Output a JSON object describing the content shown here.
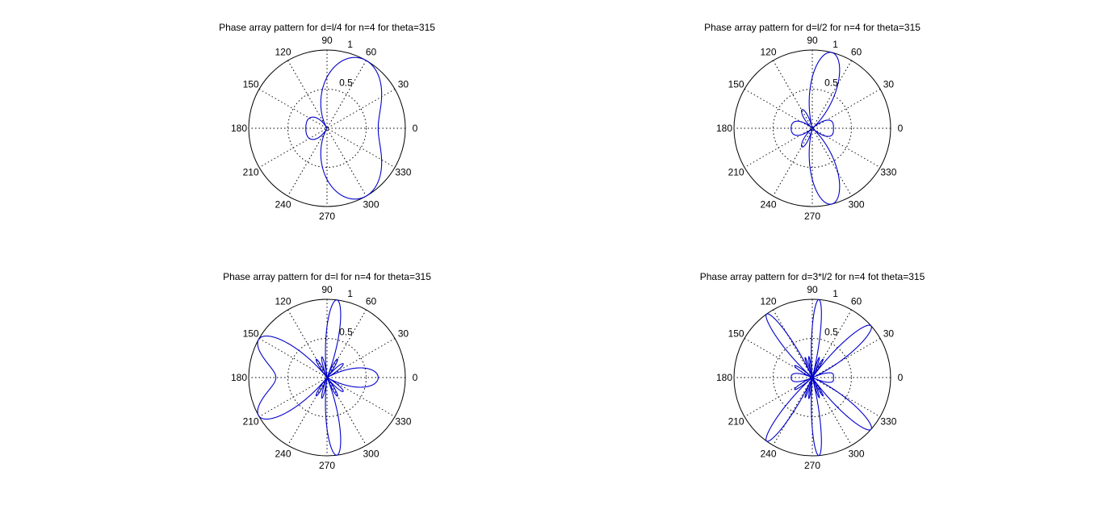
{
  "colors": {
    "background": "#ffffff",
    "trace": "#0000cc",
    "axis": "#000000",
    "grid": "#000000"
  },
  "chart_data": [
    {
      "type": "polar",
      "title": "Phase array pattern for d=l/4 for n=4 for theta=315",
      "n": 4,
      "d_over_lambda": 0.25,
      "theta_deg": 315,
      "r_ticks": [
        "0.5",
        "1"
      ],
      "angle_ticks": [
        "0",
        "30",
        "60",
        "90",
        "120",
        "150",
        "180",
        "210",
        "240",
        "270",
        "300",
        "330"
      ],
      "rlim": [
        0,
        1
      ],
      "grid": true
    },
    {
      "type": "polar",
      "title": "Phase array pattern for d=l/2 for n=4 for theta=315",
      "n": 4,
      "d_over_lambda": 0.5,
      "theta_deg": 315,
      "r_ticks": [
        "0.5",
        "1"
      ],
      "angle_ticks": [
        "0",
        "30",
        "60",
        "90",
        "120",
        "150",
        "180",
        "210",
        "240",
        "270",
        "300",
        "330"
      ],
      "rlim": [
        0,
        1
      ],
      "grid": true
    },
    {
      "type": "polar",
      "title": "Phase array pattern for d=l for n=4 for theta=315",
      "n": 4,
      "d_over_lambda": 1,
      "theta_deg": 315,
      "r_ticks": [
        "0.5",
        "1"
      ],
      "angle_ticks": [
        "0",
        "30",
        "60",
        "90",
        "120",
        "150",
        "180",
        "210",
        "240",
        "270",
        "300",
        "330"
      ],
      "rlim": [
        0,
        1
      ],
      "grid": true
    },
    {
      "type": "polar",
      "title": "Phase array pattern for d=3*l/2 for n=4 fot theta=315",
      "n": 4,
      "d_over_lambda": 1.5,
      "theta_deg": 315,
      "r_ticks": [
        "0.5",
        "1"
      ],
      "angle_ticks": [
        "0",
        "30",
        "60",
        "90",
        "120",
        "150",
        "180",
        "210",
        "240",
        "270",
        "300",
        "330"
      ],
      "rlim": [
        0,
        1
      ],
      "grid": true
    }
  ]
}
